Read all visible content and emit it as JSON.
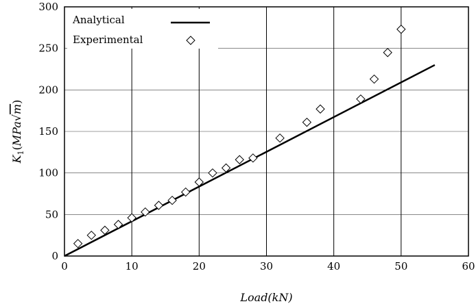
{
  "chart_data": {
    "type": "scatter",
    "title": "",
    "xlabel": "Load(kN)",
    "ylabel": "K1(MPa√m)",
    "ylabel_parts": {
      "k": "K",
      "sub": "1",
      "open": "(",
      "mpa": "MPa",
      "m": "m",
      "close": ")"
    },
    "xlim": [
      0,
      60
    ],
    "ylim": [
      0,
      300
    ],
    "xticks": [
      "0",
      "10",
      "20",
      "30",
      "40",
      "50",
      "60"
    ],
    "yticks": [
      "0",
      "50",
      "100",
      "150",
      "200",
      "250",
      "300"
    ],
    "grid": "vertical-and-horizontal",
    "legend_position": "top-left",
    "series": [
      {
        "name": "Analytical",
        "kind": "line",
        "color": "#000000",
        "x": [
          0,
          55
        ],
        "y": [
          0,
          230
        ]
      },
      {
        "name": "Experimental",
        "kind": "scatter",
        "marker": "diamond",
        "color": "#000000",
        "x": [
          2,
          4,
          6,
          8,
          10,
          12,
          14,
          16,
          18,
          20,
          22,
          24,
          26,
          28,
          32,
          36,
          38,
          44,
          46,
          48,
          50
        ],
        "y": [
          15,
          25,
          31,
          38,
          46,
          53,
          61,
          67,
          77,
          89,
          100,
          106,
          116,
          118,
          142,
          161,
          177,
          189,
          213,
          245,
          273
        ]
      }
    ]
  }
}
